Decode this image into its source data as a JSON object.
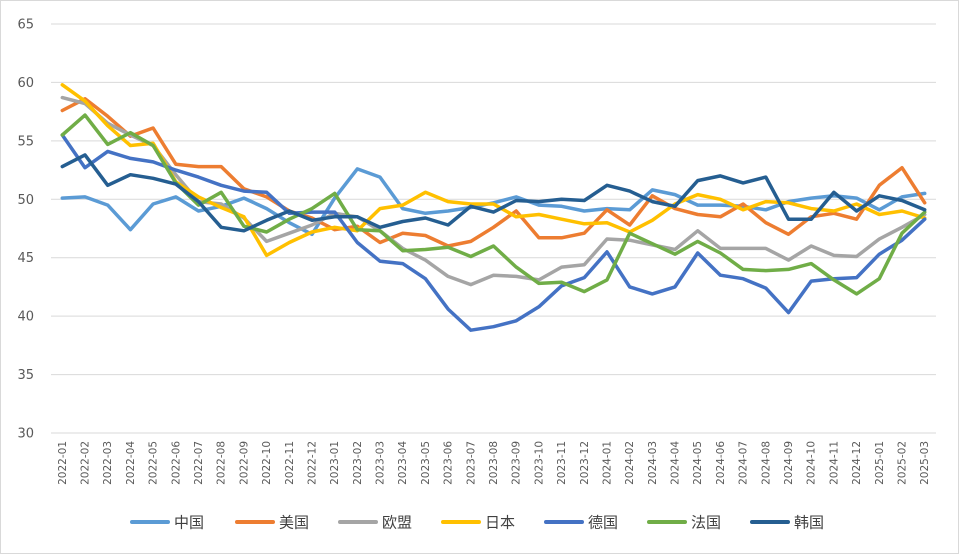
{
  "chart_data": {
    "type": "line",
    "title": "",
    "xlabel": "",
    "ylabel": "",
    "ylim": [
      30,
      65
    ],
    "y_ticks": [
      30,
      35,
      40,
      45,
      50,
      55,
      60,
      65
    ],
    "grid": "horizontal",
    "legend_position": "bottom",
    "x": [
      "2022-01",
      "2022-02",
      "2022-03",
      "2022-04",
      "2022-05",
      "2022-06",
      "2022-07",
      "2022-08",
      "2022-09",
      "2022-10",
      "2022-11",
      "2022-12",
      "2023-01",
      "2023-02",
      "2023-03",
      "2023-04",
      "2023-05",
      "2023-06",
      "2023-07",
      "2023-08",
      "2023-09",
      "2023-10",
      "2023-11",
      "2023-12",
      "2024-01",
      "2024-02",
      "2024-03",
      "2024-04",
      "2024-05",
      "2024-06",
      "2024-07",
      "2024-08",
      "2024-09",
      "2024-10",
      "2024-11",
      "2024-12",
      "2025-01",
      "2025-02",
      "2025-03"
    ],
    "series": [
      {
        "name": "中国",
        "color": "#5b9bd5",
        "values": [
          50.1,
          50.2,
          49.5,
          47.4,
          49.6,
          50.2,
          49.0,
          49.4,
          50.1,
          49.2,
          48.0,
          47.0,
          50.1,
          52.6,
          51.9,
          49.2,
          48.8,
          49.0,
          49.3,
          49.7,
          50.2,
          49.5,
          49.4,
          49.0,
          49.2,
          49.1,
          50.8,
          50.4,
          49.5,
          49.5,
          49.4,
          49.1,
          49.8,
          50.1,
          50.3,
          50.1,
          49.1,
          50.2,
          50.5
        ]
      },
      {
        "name": "美国",
        "color": "#ed7d31",
        "values": [
          57.6,
          58.6,
          57.1,
          55.4,
          56.1,
          53.0,
          52.8,
          52.8,
          50.9,
          50.2,
          49.0,
          48.4,
          47.4,
          47.7,
          46.3,
          47.1,
          46.9,
          46.0,
          46.4,
          47.6,
          49.0,
          46.7,
          46.7,
          47.1,
          49.1,
          47.8,
          50.3,
          49.2,
          48.7,
          48.5,
          49.6,
          48.0,
          47.0,
          48.5,
          48.8,
          48.3,
          51.2,
          52.7,
          49.7
        ]
      },
      {
        "name": "欧盟",
        "color": "#a5a5a5",
        "values": [
          58.7,
          58.2,
          56.5,
          55.5,
          54.6,
          52.1,
          49.8,
          49.6,
          48.4,
          46.4,
          47.1,
          47.8,
          48.8,
          48.5,
          47.3,
          45.8,
          44.8,
          43.4,
          42.7,
          43.5,
          43.4,
          43.1,
          44.2,
          44.4,
          46.6,
          46.5,
          46.1,
          45.7,
          47.3,
          45.8,
          45.8,
          45.8,
          44.8,
          46.0,
          45.2,
          45.1,
          46.6,
          47.6,
          48.7
        ]
      },
      {
        "name": "日本",
        "color": "#ffc000",
        "values": [
          59.8,
          58.4,
          56.3,
          54.6,
          54.8,
          51.5,
          50.2,
          49.3,
          48.5,
          45.2,
          46.3,
          47.2,
          47.6,
          47.3,
          49.2,
          49.5,
          50.6,
          49.8,
          49.6,
          49.6,
          48.5,
          48.7,
          48.3,
          47.9,
          48.0,
          47.2,
          48.2,
          49.6,
          50.4,
          50.0,
          49.1,
          49.8,
          49.7,
          49.2,
          49.0,
          49.6,
          48.7,
          49.0,
          48.4
        ]
      },
      {
        "name": "德国",
        "color": "#4472c4",
        "values": [
          55.5,
          52.7,
          54.1,
          53.5,
          53.2,
          52.5,
          51.9,
          51.2,
          50.7,
          50.6,
          48.8,
          48.9,
          48.9,
          46.3,
          44.7,
          44.5,
          43.2,
          40.6,
          38.8,
          39.1,
          39.6,
          40.8,
          42.6,
          43.3,
          45.5,
          42.5,
          41.9,
          42.5,
          45.4,
          43.5,
          43.2,
          42.4,
          40.3,
          43.0,
          43.2,
          43.3,
          45.3,
          46.5,
          48.3
        ]
      },
      {
        "name": "法国",
        "color": "#70ad47",
        "values": [
          55.5,
          57.2,
          54.7,
          55.7,
          54.6,
          51.4,
          49.5,
          50.6,
          47.7,
          47.2,
          48.3,
          49.2,
          50.5,
          47.4,
          47.3,
          45.6,
          45.7,
          45.9,
          45.1,
          46.0,
          44.2,
          42.8,
          42.9,
          42.1,
          43.1,
          47.1,
          46.2,
          45.3,
          46.4,
          45.4,
          44.0,
          43.9,
          44.0,
          44.5,
          43.1,
          41.9,
          43.2,
          47.1,
          48.9
        ]
      },
      {
        "name": "韩国",
        "color": "#255e91",
        "values": [
          52.8,
          53.8,
          51.2,
          52.1,
          51.8,
          51.3,
          49.8,
          47.6,
          47.3,
          48.2,
          49.0,
          48.2,
          48.5,
          48.5,
          47.6,
          48.1,
          48.4,
          47.8,
          49.4,
          48.9,
          49.9,
          49.8,
          50.0,
          49.9,
          51.2,
          50.7,
          49.8,
          49.4,
          51.6,
          52.0,
          51.4,
          51.9,
          48.3,
          48.3,
          50.6,
          49.0,
          50.3,
          49.9,
          49.1
        ]
      }
    ]
  }
}
